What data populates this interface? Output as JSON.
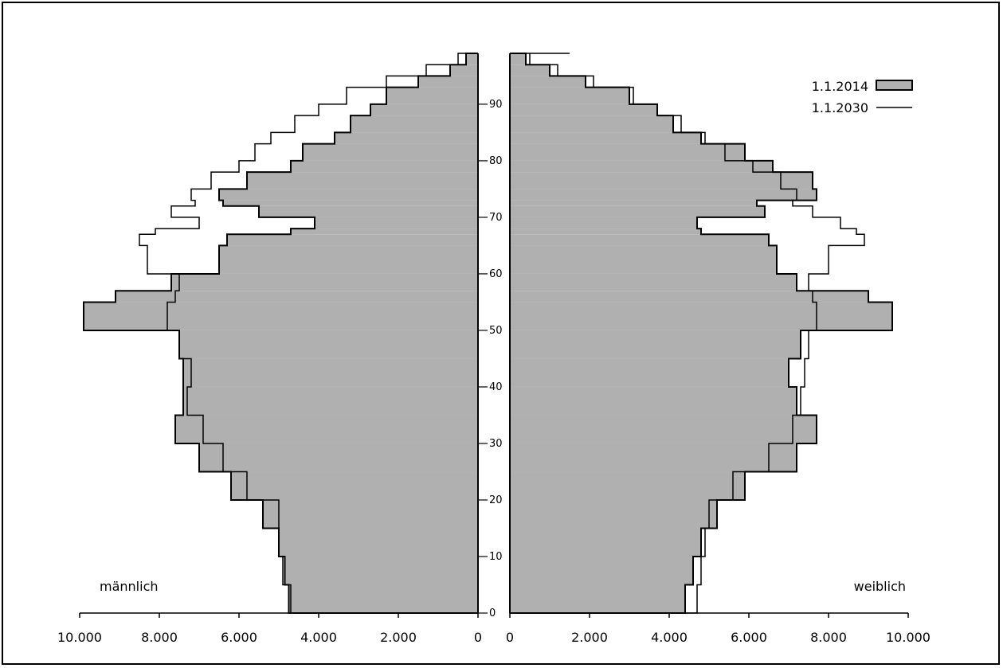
{
  "chart_data": {
    "type": "population-pyramid",
    "labels": {
      "left": "männlich",
      "right": "weiblich"
    },
    "xlim": [
      0,
      10000
    ],
    "ylim": [
      0,
      99
    ],
    "x_ticks": [
      {
        "value": 10000,
        "label": "10.000"
      },
      {
        "value": 8000,
        "label": "8.000"
      },
      {
        "value": 6000,
        "label": "6.000"
      },
      {
        "value": 4000,
        "label": "4.000"
      },
      {
        "value": 2000,
        "label": "2.000"
      },
      {
        "value": 0,
        "label": "0"
      }
    ],
    "age_ticks": [
      {
        "value": 0,
        "label": "0"
      },
      {
        "value": 10,
        "label": "10"
      },
      {
        "value": 20,
        "label": "20"
      },
      {
        "value": 30,
        "label": "30"
      },
      {
        "value": 40,
        "label": "40"
      },
      {
        "value": 50,
        "label": "50"
      },
      {
        "value": 60,
        "label": "60"
      },
      {
        "value": 70,
        "label": "70"
      },
      {
        "value": 80,
        "label": "80"
      },
      {
        "value": 90,
        "label": "90"
      }
    ],
    "legend": {
      "position": "top-right",
      "entries": [
        {
          "label": "1.1.2014",
          "style": "filled"
        },
        {
          "label": "1.1.2030",
          "style": "line"
        }
      ]
    },
    "colors": {
      "fill_2014": "#b0b0b0",
      "line": "#000000"
    },
    "series": [
      {
        "name": "1.1.2014",
        "ages": [
          0,
          5,
          10,
          15,
          20,
          25,
          30,
          35,
          40,
          45,
          50,
          55,
          57,
          60,
          65,
          67,
          68,
          70,
          72,
          73,
          75,
          78,
          80,
          83,
          85,
          88,
          90,
          93,
          95,
          97,
          99
        ],
        "male": [
          4750,
          4850,
          5000,
          5400,
          6200,
          7000,
          7600,
          7400,
          7400,
          7500,
          9900,
          9100,
          7700,
          6500,
          6300,
          4700,
          4100,
          5500,
          6400,
          6500,
          5800,
          4700,
          4400,
          3600,
          3200,
          2700,
          2300,
          1500,
          700,
          300,
          100
        ],
        "female": [
          4400,
          4600,
          4800,
          5200,
          5900,
          7200,
          7700,
          7200,
          7000,
          7300,
          9600,
          9000,
          7200,
          6700,
          6500,
          4800,
          4700,
          6400,
          6200,
          7700,
          7600,
          6600,
          5900,
          4800,
          4100,
          3700,
          3000,
          1900,
          1000,
          400,
          300
        ]
      },
      {
        "name": "1.1.2030",
        "ages": [
          0,
          5,
          10,
          15,
          20,
          25,
          30,
          35,
          40,
          45,
          50,
          55,
          57,
          60,
          65,
          67,
          68,
          70,
          72,
          73,
          75,
          78,
          80,
          83,
          85,
          88,
          90,
          93,
          95,
          97,
          99
        ],
        "male": [
          4700,
          4900,
          5000,
          5000,
          5800,
          6400,
          6900,
          7300,
          7200,
          7500,
          7800,
          7600,
          7500,
          8300,
          8500,
          8100,
          7000,
          7700,
          7100,
          7200,
          6700,
          6000,
          5600,
          5200,
          4600,
          4000,
          3300,
          2300,
          1300,
          500,
          300
        ],
        "female": [
          4700,
          4800,
          4900,
          5000,
          5600,
          6500,
          7100,
          7300,
          7400,
          7500,
          7700,
          7600,
          7500,
          8000,
          8900,
          8700,
          8300,
          7600,
          7100,
          7200,
          6800,
          6100,
          5400,
          4900,
          4300,
          3700,
          3100,
          2100,
          1200,
          500,
          1500
        ]
      }
    ]
  }
}
